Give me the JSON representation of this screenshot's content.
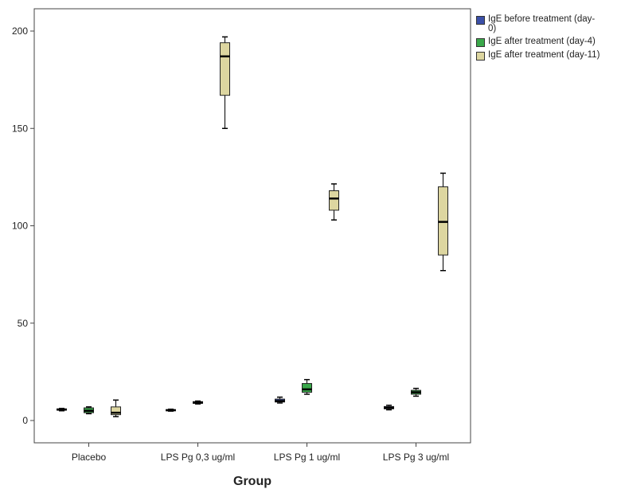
{
  "chart_data": {
    "type": "box",
    "xlabel": "Group",
    "ylabel": "",
    "ylim": [
      -10,
      207
    ],
    "yticks": [
      0,
      50,
      100,
      150,
      200
    ],
    "categories": [
      "Placebo",
      "LPS Pg 0,3 ug/ml",
      "LPS Pg 1 ug/ml",
      "LPS Pg 3 ug/ml"
    ],
    "legend_position": "top-right",
    "series": [
      {
        "name": "IgE before treatment (day-0)",
        "legend_lines": [
          "IgE before treatment (day-",
          "0)"
        ],
        "color": "#3b50a8",
        "boxes": [
          {
            "min": 5.0,
            "q1": 5.3,
            "median": 5.6,
            "q3": 6.0,
            "max": 6.2
          },
          {
            "min": 4.8,
            "q1": 5.0,
            "median": 5.3,
            "q3": 5.6,
            "max": 5.8
          },
          {
            "min": 9.0,
            "q1": 9.5,
            "median": 10.0,
            "q3": 11.0,
            "max": 12.0
          },
          {
            "min": 5.5,
            "q1": 6.0,
            "median": 6.5,
            "q3": 7.2,
            "max": 7.8
          }
        ]
      },
      {
        "name": "IgE after treatment (day-4)",
        "legend_lines": [
          "IgE after treatment (day-4)"
        ],
        "color": "#3aa84a",
        "boxes": [
          {
            "min": 3.5,
            "q1": 4.0,
            "median": 5.0,
            "q3": 6.5,
            "max": 7.0
          },
          {
            "min": 8.5,
            "q1": 8.8,
            "median": 9.2,
            "q3": 9.7,
            "max": 10.0
          },
          {
            "min": 13.5,
            "q1": 14.5,
            "median": 16.0,
            "q3": 19.0,
            "max": 21.0
          },
          {
            "min": 12.5,
            "q1": 13.5,
            "median": 14.5,
            "q3": 15.5,
            "max": 16.5
          }
        ]
      },
      {
        "name": "IgE after treatment (day-11)",
        "legend_lines": [
          "IgE after treatment (day-11)"
        ],
        "color": "#ddd6a0",
        "boxes": [
          {
            "min": 2.0,
            "q1": 3.0,
            "median": 4.0,
            "q3": 7.0,
            "max": 10.5
          },
          {
            "min": 150.0,
            "q1": 167.0,
            "median": 187.0,
            "q3": 194.0,
            "max": 197.0
          },
          {
            "min": 103.0,
            "q1": 108.0,
            "median": 114.0,
            "q3": 118.0,
            "max": 121.5
          },
          {
            "min": 77.0,
            "q1": 85.0,
            "median": 102.0,
            "q3": 120.0,
            "max": 127.0
          }
        ]
      }
    ]
  }
}
